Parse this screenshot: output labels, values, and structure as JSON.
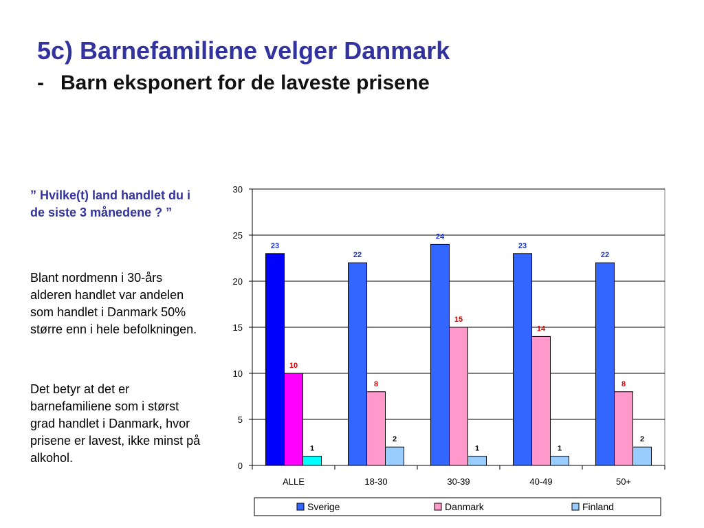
{
  "slide": {
    "title": "5c) Barnefamiliene velger Danmark",
    "subtitle_dash": "-",
    "subtitle": "Barn eksponert for de laveste prisene"
  },
  "sidebar": {
    "question": "” Hvilke(t) land handlet du i de siste 3 månedene ? ”",
    "paragraph1": "Blant nordmenn i 30-års alderen handlet var andelen som handlet i Danmark 50% større enn i hele befolkningen.",
    "paragraph2": "Det betyr at det er barnefamiliene som i størst grad handlet i Danmark, hvor prisene er lavest, ikke minst på alkohol."
  },
  "chart_data": {
    "type": "bar",
    "categories": [
      "ALLE",
      "18-30",
      "30-39",
      "40-49",
      "50+"
    ],
    "series": [
      {
        "name": "Sverige",
        "values": [
          23,
          22,
          24,
          23,
          22
        ],
        "color": "#3366ff",
        "label_color": "#1a33cc",
        "first_color": "#0000ff"
      },
      {
        "name": "Danmark",
        "values": [
          10,
          8,
          15,
          14,
          8
        ],
        "color": "#ff99cc",
        "label_color": "#e00000",
        "first_color": "#ff00ff"
      },
      {
        "name": "Finland",
        "values": [
          1,
          2,
          1,
          1,
          2
        ],
        "color": "#99ccff",
        "label_color": "#000000",
        "first_color": "#00ffff"
      }
    ],
    "ylim": [
      0,
      30
    ],
    "yticks": [
      0,
      5,
      10,
      15,
      20,
      25,
      30
    ],
    "grid": true,
    "legend": "bottom",
    "title": "",
    "xlabel": "",
    "ylabel": ""
  }
}
